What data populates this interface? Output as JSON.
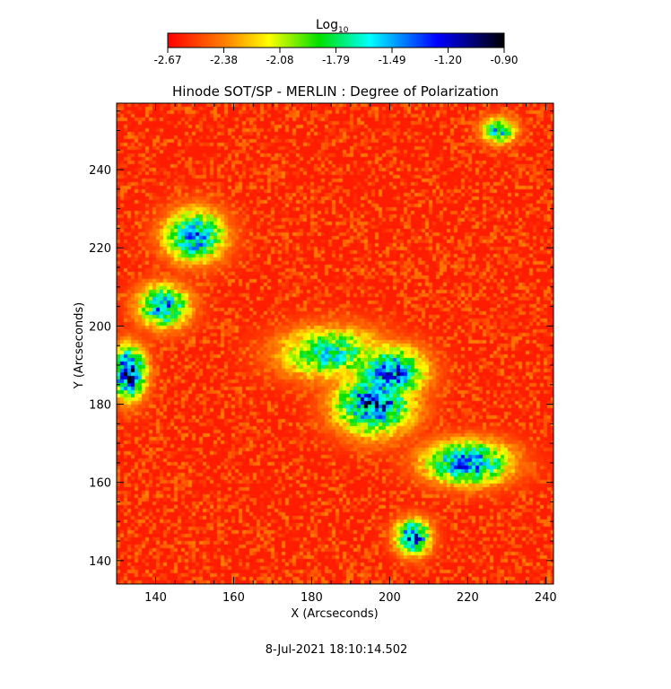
{
  "colorbar": {
    "label": "Log",
    "label_subscript": "10",
    "range": [
      -2.67,
      -0.9
    ],
    "tick_labels": [
      "-2.67",
      "-2.38",
      "-2.08",
      "-1.79",
      "-1.49",
      "-1.20",
      "-0.90"
    ],
    "colormap": [
      "#ff0000",
      "#ff8000",
      "#ffff00",
      "#00e000",
      "#00ffff",
      "#0000ff",
      "#000000"
    ]
  },
  "chart_data": {
    "type": "heatmap",
    "title": "Hinode SOT/SP - MERLIN : Degree of Polarization",
    "xlabel": "X (Arcseconds)",
    "ylabel": "Y (Arcseconds)",
    "xlim": [
      130,
      242
    ],
    "ylim": [
      134,
      257
    ],
    "x_ticks": [
      "140",
      "160",
      "180",
      "200",
      "220",
      "240"
    ],
    "y_ticks": [
      "140",
      "160",
      "180",
      "200",
      "220",
      "240"
    ],
    "z_range": [
      -2.67,
      -0.9
    ],
    "z_unit": "log10 degree of polarization",
    "background_level": -2.6,
    "regions": [
      {
        "x": 133,
        "y": 188,
        "rx": 4,
        "ry": 6,
        "peak": -0.9
      },
      {
        "x": 150,
        "y": 223,
        "rx": 7,
        "ry": 6,
        "peak": -1.3
      },
      {
        "x": 142,
        "y": 205,
        "rx": 6,
        "ry": 5,
        "peak": -1.35
      },
      {
        "x": 196,
        "y": 180,
        "rx": 9,
        "ry": 7,
        "peak": -1.15
      },
      {
        "x": 200,
        "y": 188,
        "rx": 8,
        "ry": 6,
        "peak": -1.2
      },
      {
        "x": 206,
        "y": 146,
        "rx": 4,
        "ry": 4,
        "peak": -1.1
      },
      {
        "x": 220,
        "y": 165,
        "rx": 10,
        "ry": 5,
        "peak": -1.25
      },
      {
        "x": 185,
        "y": 193,
        "rx": 12,
        "ry": 6,
        "peak": -1.6
      },
      {
        "x": 228,
        "y": 250,
        "rx": 4,
        "ry": 3,
        "peak": -1.5
      }
    ],
    "timestamp": "8-Jul-2021 18:10:14.502"
  }
}
